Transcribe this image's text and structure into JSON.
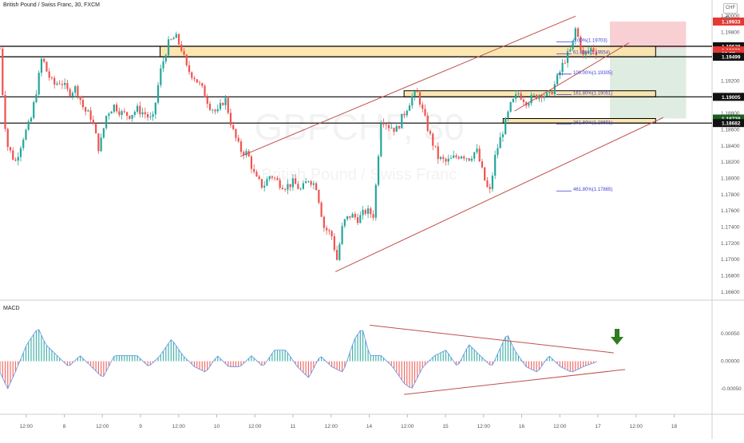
{
  "header": {
    "title": "British Pound / Swiss Franc, 30, FXCM",
    "currency_button": "CHF",
    "indicator_title": "MACD"
  },
  "watermark": {
    "symbol": "GBPCHF, 30",
    "name": "British Pound / Swiss Franc"
  },
  "colors": {
    "bull": "#26a69a",
    "bear": "#ef5350",
    "trend_line": "#c0504d",
    "zone_fill": "#fbe3a4",
    "zone_border": "#000000",
    "sl_box": "#f6c4c9",
    "tp_box": "#d7e7da",
    "fib": "#3f3fd4",
    "arrow": "#2e7d1f",
    "macd_line": "#6495ed"
  },
  "price_axis": {
    "ticks": [
      "1.20000",
      "1.19800",
      "1.19600",
      "1.19493",
      "1.19200",
      "1.19000",
      "1.18800",
      "1.18600",
      "1.18400",
      "1.18200",
      "1.18000",
      "1.17800",
      "1.17600",
      "1.17400",
      "1.17200",
      "1.17000",
      "1.16800",
      "1.16600"
    ],
    "tick_values": [
      1.2,
      1.198,
      1.196,
      1.19493,
      1.192,
      1.19,
      1.188,
      1.186,
      1.184,
      1.182,
      1.18,
      1.178,
      1.176,
      1.174,
      1.172,
      1.17,
      1.168,
      1.166
    ],
    "badges": [
      {
        "label": "1.19933",
        "value": 1.19933,
        "bg": "#e53935",
        "fg": "#ffffff"
      },
      {
        "label": "1.19628",
        "value": 1.19628,
        "bg": "#111111",
        "fg": "#ffffff"
      },
      {
        "label": "1.19623",
        "value": 1.19578,
        "bg": "#e53935",
        "fg": "#ffffff"
      },
      {
        "label": "16:57",
        "value": 1.19538,
        "bg": "#e53935",
        "fg": "#ffffff"
      },
      {
        "label": "1.19499",
        "value": 1.19499,
        "bg": "#111111",
        "fg": "#ffffff"
      },
      {
        "label": "1.19005",
        "value": 1.19005,
        "bg": "#111111",
        "fg": "#ffffff"
      },
      {
        "label": "1.18738",
        "value": 1.18738,
        "bg": "#1b5e20",
        "fg": "#ffffff"
      },
      {
        "label": "1.18682",
        "value": 1.18682,
        "bg": "#111111",
        "fg": "#ffffff"
      }
    ]
  },
  "macd_axis": {
    "ticks": [
      "0.00050",
      "0.00000",
      "-0.00050"
    ],
    "tick_values": [
      0.0005,
      0.0,
      -0.0005
    ]
  },
  "time_axis": {
    "ticks": [
      "12:00",
      "8",
      "12:00",
      "9",
      "12:00",
      "10",
      "12:00",
      "11",
      "12:00",
      "14",
      "12:00",
      "15",
      "12:00",
      "16",
      "12:00",
      "17",
      "12:00",
      "18",
      "12:00"
    ],
    "tick_x": [
      0.5,
      1,
      1.5,
      2,
      2.5,
      3,
      3.5,
      4,
      4.5,
      5,
      5.5,
      6,
      6.5,
      7,
      7.5,
      8,
      8.5,
      9,
      9.5
    ]
  },
  "fib_labels": [
    {
      "text": "0.00%(1.19703)",
      "value": 1.19703
    },
    {
      "text": "61.80%(1.19554)",
      "value": 1.19554
    },
    {
      "text": "100.00%(1.19305)",
      "value": 1.19305
    },
    {
      "text": "161.80%(1.19051)",
      "value": 1.19051
    },
    {
      "text": "261.80%(1.18691)",
      "value": 1.18691
    },
    {
      "text": "461.80%(1.17865)",
      "value": 1.17865
    }
  ],
  "chart_data": {
    "type": "candlestick",
    "title": "British Pound / Swiss Franc, 30, FXCM",
    "x_unit": "trading days from left edge (0.5 = 12:00 of first visible day)",
    "ylim": [
      1.1652,
      1.201
    ],
    "horizontal_levels": [
      1.19628,
      1.19499,
      1.19005,
      1.18682
    ],
    "zones": [
      {
        "x": [
          2.1,
          8.6
        ],
        "y": [
          1.19499,
          1.19628
        ]
      },
      {
        "x": [
          5.3,
          8.6
        ],
        "y": [
          1.19005,
          1.1908
        ]
      },
      {
        "x": [
          6.6,
          8.6
        ],
        "y": [
          1.18682,
          1.18738
        ]
      }
    ],
    "position": {
      "x": [
        8.0,
        9.0
      ],
      "entry": 1.196,
      "stop": 1.19933,
      "target": 1.18738
    },
    "trend_lines": [
      {
        "from": [
          3.15,
          1.1827
        ],
        "to": [
          7.55,
          1.2
        ]
      },
      {
        "from": [
          4.4,
          1.1685
        ],
        "to": [
          8.7,
          1.1875
        ]
      },
      {
        "from": [
          6.75,
          1.1883
        ],
        "to": [
          8.25,
          1.1967
        ]
      }
    ],
    "price_path": [
      [
        0.0,
        1.196
      ],
      [
        0.05,
        1.188
      ],
      [
        0.1,
        1.184
      ],
      [
        0.2,
        1.182
      ],
      [
        0.3,
        1.185
      ],
      [
        0.4,
        1.187
      ],
      [
        0.5,
        1.192
      ],
      [
        0.55,
        1.195
      ],
      [
        0.62,
        1.193
      ],
      [
        0.7,
        1.1915
      ],
      [
        0.8,
        1.192
      ],
      [
        0.9,
        1.1905
      ],
      [
        1.0,
        1.1912
      ],
      [
        1.1,
        1.1885
      ],
      [
        1.2,
        1.1875
      ],
      [
        1.3,
        1.1835
      ],
      [
        1.4,
        1.188
      ],
      [
        1.5,
        1.189
      ],
      [
        1.6,
        1.188
      ],
      [
        1.7,
        1.1878
      ],
      [
        1.8,
        1.1885
      ],
      [
        1.9,
        1.188
      ],
      [
        2.0,
        1.187
      ],
      [
        2.1,
        1.193
      ],
      [
        2.2,
        1.1965
      ],
      [
        2.3,
        1.1975
      ],
      [
        2.38,
        1.196
      ],
      [
        2.45,
        1.1935
      ],
      [
        2.55,
        1.1925
      ],
      [
        2.65,
        1.191
      ],
      [
        2.75,
        1.189
      ],
      [
        2.85,
        1.188
      ],
      [
        2.95,
        1.19
      ],
      [
        3.05,
        1.186
      ],
      [
        3.15,
        1.1835
      ],
      [
        3.25,
        1.183
      ],
      [
        3.35,
        1.18
      ],
      [
        3.45,
        1.179
      ],
      [
        3.55,
        1.1805
      ],
      [
        3.65,
        1.1795
      ],
      [
        3.75,
        1.179
      ],
      [
        3.85,
        1.1795
      ],
      [
        3.95,
        1.1785
      ],
      [
        4.05,
        1.18
      ],
      [
        4.15,
        1.179
      ],
      [
        4.25,
        1.174
      ],
      [
        4.35,
        1.173
      ],
      [
        4.42,
        1.17
      ],
      [
        4.5,
        1.1745
      ],
      [
        4.6,
        1.1755
      ],
      [
        4.7,
        1.175
      ],
      [
        4.8,
        1.176
      ],
      [
        4.9,
        1.1755
      ],
      [
        5.0,
        1.1875
      ],
      [
        5.1,
        1.1865
      ],
      [
        5.2,
        1.186
      ],
      [
        5.3,
        1.188
      ],
      [
        5.4,
        1.19
      ],
      [
        5.48,
        1.1905
      ],
      [
        5.55,
        1.188
      ],
      [
        5.65,
        1.185
      ],
      [
        5.75,
        1.1825
      ],
      [
        5.85,
        1.182
      ],
      [
        5.95,
        1.1825
      ],
      [
        6.05,
        1.183
      ],
      [
        6.15,
        1.1825
      ],
      [
        6.25,
        1.1835
      ],
      [
        6.35,
        1.18
      ],
      [
        6.42,
        1.178
      ],
      [
        6.5,
        1.183
      ],
      [
        6.6,
        1.186
      ],
      [
        6.7,
        1.189
      ],
      [
        6.8,
        1.1905
      ],
      [
        6.9,
        1.1895
      ],
      [
        7.0,
        1.19
      ],
      [
        7.1,
        1.1905
      ],
      [
        7.2,
        1.19
      ],
      [
        7.3,
        1.192
      ],
      [
        7.4,
        1.1945
      ],
      [
        7.5,
        1.196
      ],
      [
        7.55,
        1.1985
      ],
      [
        7.65,
        1.195
      ],
      [
        7.75,
        1.196
      ],
      [
        7.85,
        1.1955
      ]
    ],
    "macd_histogram_path": [
      [
        0.0,
        -0.0002
      ],
      [
        0.1,
        -0.0005
      ],
      [
        0.2,
        -0.0002
      ],
      [
        0.35,
        0.0003
      ],
      [
        0.5,
        0.0006
      ],
      [
        0.6,
        0.0003
      ],
      [
        0.75,
        0.0001
      ],
      [
        0.9,
        -0.0001
      ],
      [
        1.05,
        0.0001
      ],
      [
        1.2,
        -0.0001
      ],
      [
        1.35,
        -0.0003
      ],
      [
        1.5,
        0.0001
      ],
      [
        1.65,
        0.0001
      ],
      [
        1.8,
        0.0001
      ],
      [
        1.95,
        -0.0001
      ],
      [
        2.1,
        0.0001
      ],
      [
        2.25,
        0.0004
      ],
      [
        2.4,
        0.0001
      ],
      [
        2.55,
        -0.0001
      ],
      [
        2.7,
        -0.0002
      ],
      [
        2.85,
        0.0001
      ],
      [
        3.0,
        -0.0001
      ],
      [
        3.15,
        -0.0001
      ],
      [
        3.3,
        0.0001
      ],
      [
        3.45,
        -0.0001
      ],
      [
        3.6,
        0.0002
      ],
      [
        3.75,
        0.0002
      ],
      [
        3.9,
        -0.0001
      ],
      [
        4.05,
        -0.0003
      ],
      [
        4.2,
        0.0001
      ],
      [
        4.35,
        -0.0001
      ],
      [
        4.5,
        -0.0002
      ],
      [
        4.65,
        0.0004
      ],
      [
        4.75,
        0.0006
      ],
      [
        4.85,
        0.0001
      ],
      [
        5.0,
        0.0001
      ],
      [
        5.15,
        -0.0001
      ],
      [
        5.3,
        -0.0004
      ],
      [
        5.4,
        -0.0005
      ],
      [
        5.55,
        -0.0001
      ],
      [
        5.7,
        0.0001
      ],
      [
        5.85,
        0.0002
      ],
      [
        6.0,
        -0.0001
      ],
      [
        6.15,
        0.0003
      ],
      [
        6.3,
        0.0001
      ],
      [
        6.45,
        -0.0001
      ],
      [
        6.55,
        0.0002
      ],
      [
        6.65,
        0.0005
      ],
      [
        6.75,
        0.0002
      ],
      [
        6.9,
        -0.0001
      ],
      [
        7.05,
        -0.0002
      ],
      [
        7.2,
        0.0001
      ],
      [
        7.35,
        -0.0001
      ],
      [
        7.5,
        -0.0002
      ],
      [
        7.65,
        -0.0001
      ],
      [
        7.85,
        0.0
      ]
    ],
    "macd_trend_lines": [
      {
        "from": [
          4.85,
          0.00065
        ],
        "to": [
          8.05,
          0.00015
        ]
      },
      {
        "from": [
          5.3,
          -0.0006
        ],
        "to": [
          8.2,
          -0.00015
        ]
      }
    ]
  }
}
